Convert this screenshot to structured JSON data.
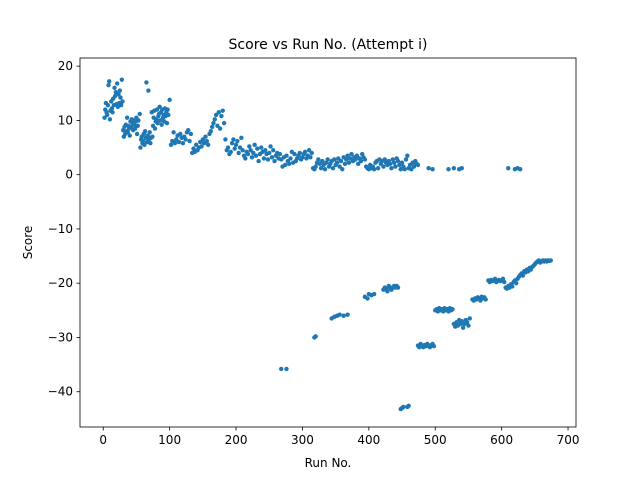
{
  "chart_data": {
    "type": "scatter",
    "title": "Score vs Run No. (Attempt i)",
    "xlabel": "Run No.",
    "ylabel": "Score",
    "xlim": [
      -35,
      712
    ],
    "ylim": [
      -46.5,
      21.5
    ],
    "xticks": [
      0,
      100,
      200,
      300,
      400,
      500,
      600,
      700
    ],
    "xtick_labels": [
      "0",
      "100",
      "200",
      "300",
      "400",
      "500",
      "600",
      "700"
    ],
    "yticks": [
      20,
      10,
      0,
      -10,
      -20,
      -30,
      -40
    ],
    "ytick_labels": [
      "20",
      "10",
      "0",
      "−10",
      "−20",
      "−30",
      "−40"
    ],
    "grid": false,
    "marker_color": "#1f77b4",
    "points": [
      [
        2,
        10.5
      ],
      [
        3,
        12.0
      ],
      [
        4,
        13.2
      ],
      [
        5,
        11.5
      ],
      [
        6,
        11.0
      ],
      [
        7,
        12.8
      ],
      [
        8,
        16.5
      ],
      [
        9,
        17.2
      ],
      [
        10,
        10.2
      ],
      [
        11,
        11.8
      ],
      [
        12,
        13.5
      ],
      [
        13,
        12.2
      ],
      [
        14,
        11.5
      ],
      [
        15,
        14.0
      ],
      [
        16,
        12.8
      ],
      [
        17,
        16.0
      ],
      [
        18,
        14.5
      ],
      [
        19,
        15.2
      ],
      [
        20,
        13.0
      ],
      [
        21,
        16.8
      ],
      [
        22,
        12.5
      ],
      [
        23,
        14.8
      ],
      [
        24,
        13.2
      ],
      [
        25,
        15.5
      ],
      [
        26,
        14.2
      ],
      [
        27,
        12.8
      ],
      [
        28,
        17.5
      ],
      [
        29,
        13.5
      ],
      [
        30,
        8.2
      ],
      [
        31,
        7.0
      ],
      [
        32,
        8.8
      ],
      [
        33,
        7.5
      ],
      [
        34,
        9.2
      ],
      [
        35,
        8.0
      ],
      [
        36,
        10.5
      ],
      [
        37,
        7.8
      ],
      [
        38,
        9.0
      ],
      [
        39,
        8.5
      ],
      [
        40,
        7.2
      ],
      [
        41,
        9.8
      ],
      [
        42,
        8.8
      ],
      [
        43,
        10.2
      ],
      [
        44,
        9.5
      ],
      [
        45,
        8.2
      ],
      [
        46,
        10.0
      ],
      [
        47,
        9.2
      ],
      [
        48,
        8.5
      ],
      [
        49,
        9.8
      ],
      [
        50,
        10.5
      ],
      [
        51,
        7.5
      ],
      [
        52,
        9.0
      ],
      [
        53,
        10.0
      ],
      [
        55,
        11.2
      ],
      [
        56,
        5.0
      ],
      [
        57,
        6.5
      ],
      [
        58,
        7.0
      ],
      [
        59,
        5.8
      ],
      [
        60,
        6.2
      ],
      [
        61,
        7.5
      ],
      [
        62,
        5.5
      ],
      [
        63,
        8.0
      ],
      [
        64,
        6.8
      ],
      [
        65,
        17.0
      ],
      [
        66,
        6.0
      ],
      [
        67,
        7.2
      ],
      [
        68,
        15.5
      ],
      [
        69,
        6.5
      ],
      [
        70,
        7.8
      ],
      [
        71,
        5.8
      ],
      [
        72,
        6.8
      ],
      [
        73,
        11.5
      ],
      [
        74,
        7.0
      ],
      [
        75,
        9.0
      ],
      [
        76,
        10.5
      ],
      [
        77,
        11.8
      ],
      [
        78,
        8.5
      ],
      [
        79,
        9.8
      ],
      [
        80,
        10.2
      ],
      [
        81,
        12.0
      ],
      [
        82,
        9.5
      ],
      [
        83,
        10.8
      ],
      [
        84,
        11.2
      ],
      [
        85,
        12.5
      ],
      [
        86,
        10.0
      ],
      [
        87,
        11.5
      ],
      [
        88,
        9.2
      ],
      [
        89,
        12.0
      ],
      [
        90,
        10.5
      ],
      [
        91,
        11.0
      ],
      [
        92,
        9.8
      ],
      [
        93,
        12.2
      ],
      [
        94,
        10.8
      ],
      [
        95,
        11.5
      ],
      [
        96,
        9.5
      ],
      [
        97,
        12.0
      ],
      [
        98,
        11.0
      ],
      [
        100,
        13.8
      ],
      [
        102,
        5.5
      ],
      [
        104,
        6.2
      ],
      [
        106,
        7.8
      ],
      [
        108,
        5.8
      ],
      [
        110,
        6.5
      ],
      [
        112,
        7.2
      ],
      [
        114,
        6.0
      ],
      [
        116,
        7.5
      ],
      [
        118,
        6.8
      ],
      [
        120,
        5.8
      ],
      [
        122,
        7.0
      ],
      [
        124,
        6.5
      ],
      [
        126,
        7.8
      ],
      [
        128,
        8.2
      ],
      [
        130,
        6.2
      ],
      [
        132,
        7.5
      ],
      [
        134,
        4.0
      ],
      [
        136,
        4.8
      ],
      [
        138,
        4.2
      ],
      [
        140,
        5.5
      ],
      [
        142,
        4.5
      ],
      [
        144,
        5.0
      ],
      [
        146,
        6.0
      ],
      [
        148,
        5.2
      ],
      [
        150,
        6.5
      ],
      [
        152,
        5.8
      ],
      [
        154,
        7.0
      ],
      [
        156,
        6.2
      ],
      [
        158,
        5.5
      ],
      [
        160,
        7.5
      ],
      [
        162,
        8.0
      ],
      [
        164,
        8.8
      ],
      [
        166,
        9.5
      ],
      [
        168,
        10.2
      ],
      [
        170,
        11.0
      ],
      [
        172,
        9.0
      ],
      [
        174,
        11.5
      ],
      [
        176,
        8.5
      ],
      [
        178,
        10.8
      ],
      [
        180,
        11.8
      ],
      [
        182,
        9.5
      ],
      [
        184,
        6.5
      ],
      [
        186,
        4.5
      ],
      [
        188,
        5.0
      ],
      [
        190,
        3.8
      ],
      [
        192,
        4.2
      ],
      [
        194,
        5.8
      ],
      [
        196,
        6.5
      ],
      [
        198,
        4.8
      ],
      [
        200,
        5.5
      ],
      [
        202,
        6.2
      ],
      [
        204,
        4.0
      ],
      [
        206,
        5.0
      ],
      [
        208,
        6.8
      ],
      [
        210,
        4.5
      ],
      [
        212,
        3.5
      ],
      [
        214,
        3.0
      ],
      [
        216,
        4.2
      ],
      [
        218,
        3.8
      ],
      [
        220,
        5.2
      ],
      [
        222,
        4.5
      ],
      [
        224,
        3.2
      ],
      [
        226,
        4.0
      ],
      [
        228,
        5.5
      ],
      [
        230,
        3.5
      ],
      [
        232,
        4.8
      ],
      [
        234,
        2.5
      ],
      [
        236,
        3.8
      ],
      [
        238,
        5.0
      ],
      [
        240,
        4.2
      ],
      [
        242,
        3.0
      ],
      [
        244,
        4.5
      ],
      [
        246,
        3.8
      ],
      [
        248,
        2.8
      ],
      [
        250,
        4.0
      ],
      [
        252,
        5.2
      ],
      [
        254,
        3.2
      ],
      [
        256,
        4.5
      ],
      [
        258,
        2.5
      ],
      [
        260,
        3.5
      ],
      [
        262,
        4.0
      ],
      [
        264,
        3.0
      ],
      [
        266,
        3.8
      ],
      [
        268,
        2.8
      ],
      [
        270,
        1.5
      ],
      [
        272,
        3.2
      ],
      [
        274,
        1.8
      ],
      [
        276,
        3.5
      ],
      [
        278,
        2.5
      ],
      [
        280,
        2.0
      ],
      [
        282,
        3.0
      ],
      [
        284,
        4.2
      ],
      [
        286,
        2.2
      ],
      [
        288,
        3.8
      ],
      [
        290,
        2.5
      ],
      [
        292,
        3.0
      ],
      [
        294,
        3.5
      ],
      [
        296,
        4.0
      ],
      [
        298,
        2.8
      ],
      [
        300,
        3.2
      ],
      [
        302,
        3.8
      ],
      [
        304,
        4.2
      ],
      [
        306,
        3.0
      ],
      [
        308,
        3.5
      ],
      [
        310,
        4.5
      ],
      [
        312,
        3.2
      ],
      [
        314,
        4.0
      ],
      [
        316,
        1.2
      ],
      [
        318,
        1.0
      ],
      [
        320,
        1.5
      ],
      [
        322,
        2.2
      ],
      [
        324,
        2.8
      ],
      [
        326,
        2.0
      ],
      [
        328,
        1.2
      ],
      [
        330,
        2.5
      ],
      [
        332,
        1.8
      ],
      [
        334,
        1.0
      ],
      [
        336,
        2.2
      ],
      [
        338,
        2.8
      ],
      [
        340,
        1.5
      ],
      [
        342,
        2.0
      ],
      [
        344,
        2.5
      ],
      [
        346,
        1.2
      ],
      [
        348,
        2.8
      ],
      [
        350,
        1.8
      ],
      [
        352,
        2.2
      ],
      [
        354,
        3.0
      ],
      [
        356,
        1.5
      ],
      [
        358,
        2.5
      ],
      [
        360,
        1.0
      ],
      [
        362,
        3.2
      ],
      [
        364,
        2.0
      ],
      [
        366,
        2.8
      ],
      [
        368,
        3.5
      ],
      [
        370,
        2.2
      ],
      [
        372,
        3.0
      ],
      [
        374,
        3.8
      ],
      [
        376,
        2.5
      ],
      [
        378,
        3.2
      ],
      [
        380,
        2.8
      ],
      [
        382,
        3.5
      ],
      [
        384,
        2.0
      ],
      [
        386,
        3.0
      ],
      [
        388,
        2.5
      ],
      [
        390,
        3.8
      ],
      [
        392,
        3.2
      ],
      [
        394,
        2.8
      ],
      [
        396,
        1.5
      ],
      [
        398,
        1.2
      ],
      [
        400,
        1.0
      ],
      [
        402,
        1.8
      ],
      [
        404,
        1.2
      ],
      [
        406,
        1.5
      ],
      [
        408,
        1.0
      ],
      [
        410,
        2.2
      ],
      [
        412,
        2.5
      ],
      [
        414,
        1.2
      ],
      [
        416,
        2.8
      ],
      [
        418,
        2.0
      ],
      [
        420,
        2.5
      ],
      [
        422,
        1.5
      ],
      [
        424,
        2.8
      ],
      [
        426,
        2.2
      ],
      [
        428,
        1.8
      ],
      [
        430,
        2.5
      ],
      [
        432,
        2.0
      ],
      [
        434,
        1.2
      ],
      [
        436,
        2.8
      ],
      [
        438,
        2.2
      ],
      [
        440,
        1.5
      ],
      [
        442,
        3.0
      ],
      [
        444,
        2.5
      ],
      [
        446,
        1.8
      ],
      [
        448,
        1.0
      ],
      [
        450,
        2.2
      ],
      [
        452,
        1.5
      ],
      [
        454,
        1.0
      ],
      [
        456,
        2.8
      ],
      [
        458,
        3.5
      ],
      [
        460,
        1.2
      ],
      [
        462,
        1.8
      ],
      [
        464,
        1.0
      ],
      [
        466,
        2.2
      ],
      [
        468,
        1.5
      ],
      [
        470,
        2.5
      ],
      [
        472,
        2.0
      ],
      [
        474,
        1.8
      ],
      [
        490,
        1.2
      ],
      [
        496,
        1.0
      ],
      [
        520,
        1.0
      ],
      [
        528,
        1.2
      ],
      [
        536,
        1.0
      ],
      [
        540,
        1.2
      ],
      [
        610,
        1.2
      ],
      [
        620,
        1.0
      ],
      [
        624,
        1.2
      ],
      [
        628,
        1.0
      ],
      [
        268,
        -35.8
      ],
      [
        276,
        -35.8
      ],
      [
        318,
        -30.0
      ],
      [
        320,
        -29.8
      ],
      [
        344,
        -26.5
      ],
      [
        348,
        -26.2
      ],
      [
        352,
        -26.0
      ],
      [
        356,
        -25.8
      ],
      [
        362,
        -26.0
      ],
      [
        368,
        -25.8
      ],
      [
        394,
        -22.5
      ],
      [
        398,
        -22.8
      ],
      [
        400,
        -22.0
      ],
      [
        404,
        -22.2
      ],
      [
        408,
        -22.0
      ],
      [
        422,
        -21.2
      ],
      [
        424,
        -20.8
      ],
      [
        426,
        -21.0
      ],
      [
        428,
        -21.5
      ],
      [
        430,
        -20.5
      ],
      [
        432,
        -20.8
      ],
      [
        434,
        -21.2
      ],
      [
        436,
        -20.8
      ],
      [
        438,
        -20.5
      ],
      [
        440,
        -20.8
      ],
      [
        442,
        -20.5
      ],
      [
        444,
        -20.8
      ],
      [
        448,
        -43.2
      ],
      [
        450,
        -43.0
      ],
      [
        452,
        -42.8
      ],
      [
        458,
        -42.8
      ],
      [
        460,
        -42.6
      ],
      [
        474,
        -31.5
      ],
      [
        476,
        -31.8
      ],
      [
        478,
        -31.2
      ],
      [
        480,
        -31.6
      ],
      [
        482,
        -31.8
      ],
      [
        484,
        -31.4
      ],
      [
        486,
        -31.6
      ],
      [
        488,
        -31.2
      ],
      [
        490,
        -31.5
      ],
      [
        492,
        -31.8
      ],
      [
        494,
        -31.4
      ],
      [
        496,
        -31.2
      ],
      [
        498,
        -31.6
      ],
      [
        500,
        -25.0
      ],
      [
        502,
        -24.8
      ],
      [
        504,
        -25.2
      ],
      [
        506,
        -24.6
      ],
      [
        508,
        -25.0
      ],
      [
        510,
        -24.8
      ],
      [
        512,
        -25.2
      ],
      [
        514,
        -24.6
      ],
      [
        516,
        -25.0
      ],
      [
        518,
        -24.8
      ],
      [
        520,
        -25.2
      ],
      [
        522,
        -24.6
      ],
      [
        524,
        -25.0
      ],
      [
        526,
        -24.8
      ],
      [
        528,
        -27.5
      ],
      [
        530,
        -28.0
      ],
      [
        532,
        -27.2
      ],
      [
        534,
        -27.8
      ],
      [
        536,
        -26.8
      ],
      [
        538,
        -27.5
      ],
      [
        540,
        -27.0
      ],
      [
        542,
        -28.2
      ],
      [
        544,
        -27.5
      ],
      [
        546,
        -26.8
      ],
      [
        548,
        -27.2
      ],
      [
        550,
        -27.8
      ],
      [
        552,
        -26.5
      ],
      [
        556,
        -23.0
      ],
      [
        558,
        -23.2
      ],
      [
        560,
        -22.8
      ],
      [
        562,
        -23.0
      ],
      [
        564,
        -22.6
      ],
      [
        566,
        -22.8
      ],
      [
        568,
        -23.2
      ],
      [
        570,
        -22.5
      ],
      [
        572,
        -22.8
      ],
      [
        574,
        -22.6
      ],
      [
        576,
        -23.0
      ],
      [
        580,
        -19.5
      ],
      [
        582,
        -19.8
      ],
      [
        584,
        -19.4
      ],
      [
        586,
        -19.6
      ],
      [
        588,
        -19.5
      ],
      [
        590,
        -19.2
      ],
      [
        592,
        -19.8
      ],
      [
        594,
        -19.5
      ],
      [
        596,
        -19.4
      ],
      [
        598,
        -19.6
      ],
      [
        600,
        -19.5
      ],
      [
        602,
        -19.2
      ],
      [
        604,
        -19.8
      ],
      [
        606,
        -20.8
      ],
      [
        608,
        -21.0
      ],
      [
        610,
        -20.5
      ],
      [
        612,
        -20.8
      ],
      [
        614,
        -20.2
      ],
      [
        616,
        -20.6
      ],
      [
        618,
        -19.8
      ],
      [
        620,
        -19.5
      ],
      [
        622,
        -20.0
      ],
      [
        624,
        -19.2
      ],
      [
        626,
        -18.8
      ],
      [
        628,
        -18.5
      ],
      [
        630,
        -18.2
      ],
      [
        632,
        -18.6
      ],
      [
        634,
        -17.8
      ],
      [
        636,
        -18.0
      ],
      [
        638,
        -17.5
      ],
      [
        640,
        -17.8
      ],
      [
        642,
        -17.2
      ],
      [
        644,
        -17.5
      ],
      [
        646,
        -17.0
      ],
      [
        648,
        -16.8
      ],
      [
        650,
        -16.5
      ],
      [
        652,
        -16.2
      ],
      [
        654,
        -16.0
      ],
      [
        656,
        -15.8
      ],
      [
        658,
        -16.2
      ],
      [
        660,
        -16.0
      ],
      [
        662,
        -15.8
      ],
      [
        664,
        -16.0
      ],
      [
        666,
        -15.8
      ],
      [
        668,
        -16.0
      ],
      [
        670,
        -15.8
      ],
      [
        672,
        -15.9
      ],
      [
        674,
        -15.8
      ]
    ]
  }
}
